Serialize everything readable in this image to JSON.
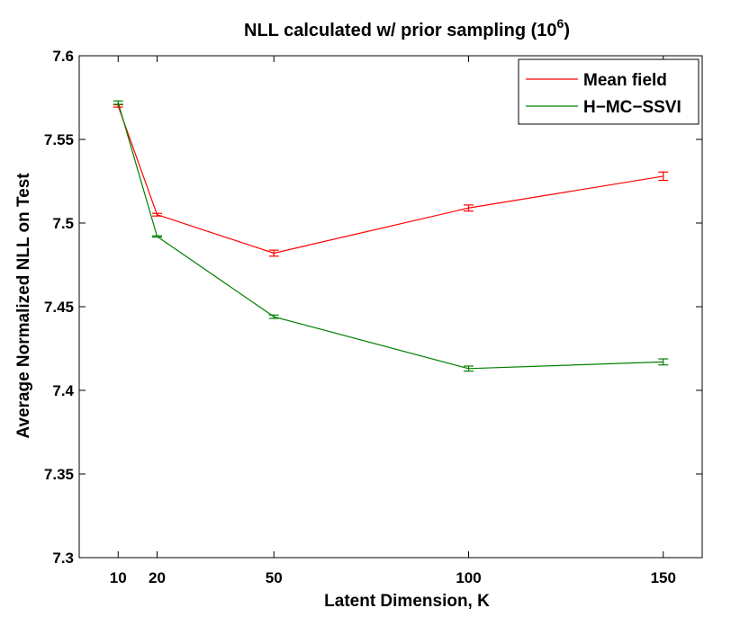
{
  "chart_data": {
    "type": "line",
    "title": "NLL calculated w/ prior sampling (10",
    "title_superscript": "6",
    "title_suffix": ")",
    "xlabel": "Latent Dimension, K",
    "ylabel": "Average Normalized NLL on Test",
    "x": [
      10,
      20,
      50,
      100,
      150
    ],
    "xticks": [
      10,
      20,
      50,
      100,
      150
    ],
    "xtick_labels": [
      "10",
      "20",
      "50",
      "100",
      "150"
    ],
    "xlim": [
      0,
      160
    ],
    "ylim": [
      7.3,
      7.6
    ],
    "yticks": [
      7.3,
      7.35,
      7.4,
      7.45,
      7.5,
      7.55,
      7.6
    ],
    "ytick_labels": [
      "7.3",
      "7.35",
      "7.4",
      "7.45",
      "7.5",
      "7.55",
      "7.6"
    ],
    "grid": false,
    "legend_position": "top-right",
    "series": [
      {
        "name": "Mean field",
        "color": "#ff0000",
        "values": [
          7.57,
          7.505,
          7.482,
          7.509,
          7.528
        ],
        "errors": [
          0.0007,
          0.0008,
          0.0018,
          0.0018,
          0.0025
        ]
      },
      {
        "name": "H−MC−SSVI",
        "color": "#008000",
        "values": [
          7.572,
          7.492,
          7.444,
          7.413,
          7.417
        ],
        "errors": [
          0.001,
          0.0004,
          0.001,
          0.0015,
          0.0018
        ]
      }
    ]
  }
}
